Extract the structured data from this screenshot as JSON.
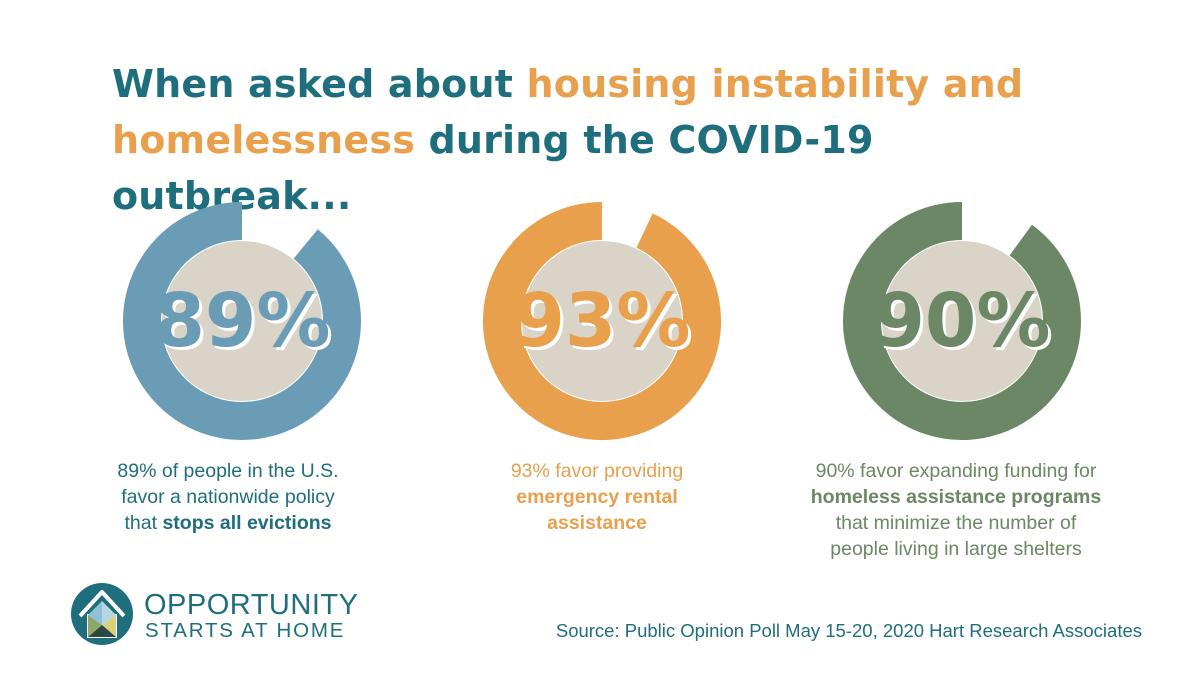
{
  "header": {
    "title_part1": "When asked about ",
    "title_highlight1": "housing instability and",
    "title_highlight2": "homelessness",
    "title_part2": " during the COVID-19 outbreak..."
  },
  "chart_data": {
    "type": "donut",
    "series": [
      {
        "value": 89,
        "label": "89%",
        "color": "#6a9db5",
        "caption_lines": [
          "89% of people in the U.S.",
          "favor a nationwide policy",
          "that "
        ],
        "caption_bold": "stops all evictions"
      },
      {
        "value": 93,
        "label": "93%",
        "color": "#e8a04c",
        "caption_lines": [
          "93% favor providing"
        ],
        "caption_bold_lines": [
          "emergency rental",
          "assistance"
        ]
      },
      {
        "value": 90,
        "label": "90%",
        "color": "#6b8765",
        "caption_lines": [
          "90% favor expanding funding for"
        ],
        "caption_bold": "homeless assistance programs",
        "caption_after": [
          "that minimize the number of",
          "people living in large shelters"
        ]
      }
    ],
    "inner_color": "#dad4c8"
  },
  "branding": {
    "org_line1": "OPPORTUNITY",
    "org_line2": "STARTS AT HOME",
    "logo_icon": "house-logo-icon"
  },
  "footer": {
    "source": "Source: Public Opinion Poll May 15-20, 2020 Hart Research Associates"
  }
}
